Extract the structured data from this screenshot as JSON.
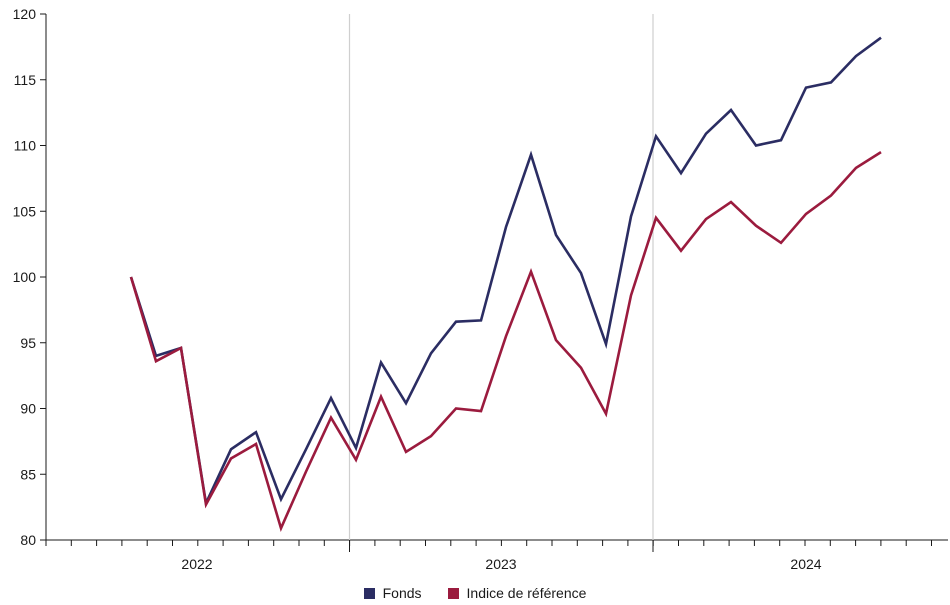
{
  "chart_data": {
    "type": "line",
    "title": "",
    "xlabel": "",
    "ylabel": "",
    "ylim": [
      80,
      120
    ],
    "yticks": [
      80,
      85,
      90,
      95,
      100,
      105,
      110,
      115,
      120
    ],
    "x_tick_labels": [
      "2022",
      "2023",
      "2024"
    ],
    "grid": false,
    "year_separators": true,
    "legend_position": "bottom-center",
    "series": [
      {
        "name": "Fonds",
        "color": "#2b2d63",
        "values": [
          100,
          94.0,
          94.6,
          82.8,
          86.9,
          88.2,
          83.1,
          86.9,
          90.8,
          87.0,
          93.5,
          90.4,
          94.2,
          96.6,
          96.7,
          103.8,
          109.3,
          103.2,
          100.3,
          94.9,
          104.6,
          110.7,
          107.9,
          110.9,
          112.7,
          110.0,
          110.4,
          114.4,
          114.8,
          116.8,
          118.2
        ]
      },
      {
        "name": "Indice de référence",
        "color": "#9b1b3e",
        "values": [
          100,
          93.6,
          94.6,
          82.7,
          86.2,
          87.3,
          80.9,
          85.2,
          89.3,
          86.1,
          90.9,
          86.7,
          87.9,
          90.0,
          89.8,
          95.5,
          100.4,
          95.2,
          93.1,
          89.6,
          98.6,
          104.5,
          102.0,
          104.4,
          105.7,
          103.9,
          102.6,
          104.8,
          106.2,
          108.3,
          109.5
        ]
      }
    ]
  }
}
